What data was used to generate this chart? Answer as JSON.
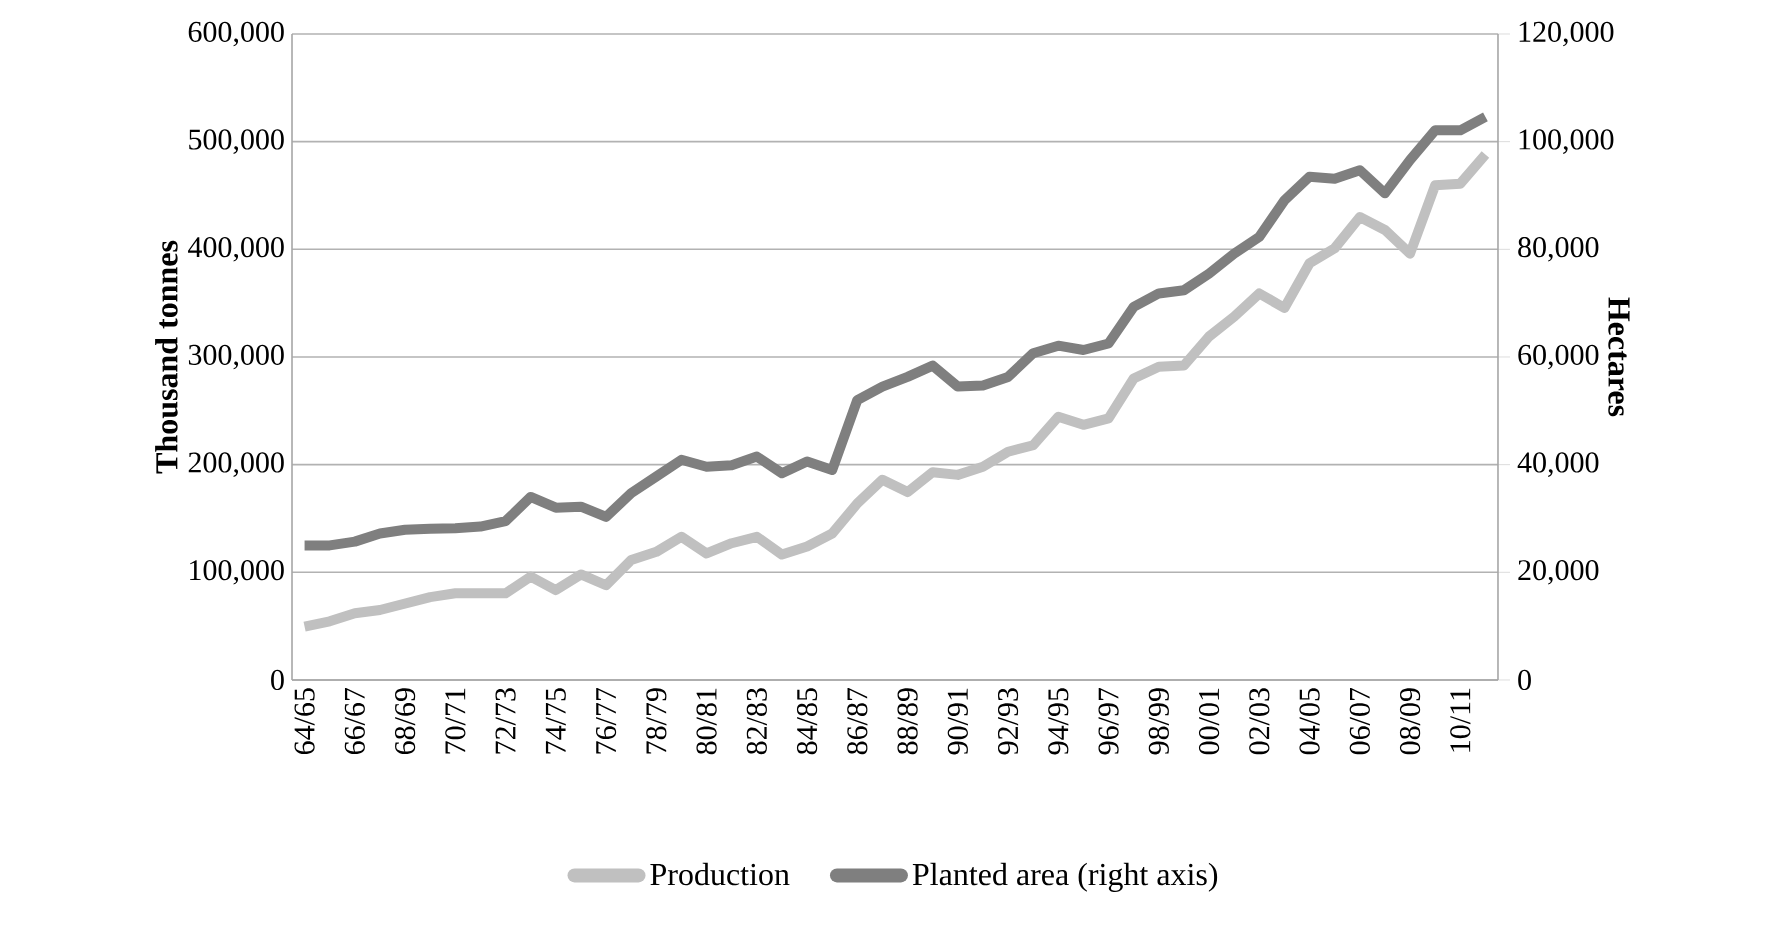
{
  "chart_data": {
    "type": "line",
    "ylabel": "Thousand tonnes",
    "y2label": "Hectares",
    "categories": [
      "64/65",
      null,
      "66/67",
      null,
      "68/69",
      null,
      "70/71",
      null,
      "72/73",
      null,
      "74/75",
      null,
      "76/77",
      null,
      "78/79",
      null,
      "80/81",
      null,
      "82/83",
      null,
      "84/85",
      null,
      "86/87",
      null,
      "88/89",
      null,
      "90/91",
      null,
      "92/93",
      null,
      "94/95",
      null,
      "96/97",
      null,
      "98/99",
      null,
      "00/01",
      null,
      "02/03",
      null,
      "04/05",
      null,
      "06/07",
      null,
      "08/09",
      null,
      "10/11",
      null
    ],
    "series": [
      {
        "name": "Production",
        "color": "#c0c0c0",
        "values": [
          49500,
          54500,
          62000,
          65000,
          71000,
          77000,
          80500,
          80500,
          80500,
          96000,
          83500,
          98000,
          88000,
          111500,
          119000,
          133000,
          117500,
          127000,
          133000,
          116500,
          124000,
          136000,
          164000,
          186000,
          174500,
          193000,
          190500,
          198000,
          212000,
          218000,
          244500,
          237000,
          243000,
          280000,
          291000,
          292000,
          319000,
          337500,
          359000,
          345500,
          387000,
          401000,
          430000,
          418000,
          396000,
          459500,
          461000,
          488000
        ]
      },
      {
        "name": "Planted area (right axis)",
        "color": "#7f7f7f",
        "axis": "y2",
        "values": [
          25000,
          25000,
          25700,
          27200,
          27900,
          28100,
          28200,
          28500,
          29500,
          34000,
          32000,
          32200,
          30300,
          34700,
          37800,
          40900,
          39600,
          39900,
          41500,
          38400,
          40600,
          39000,
          52000,
          54500,
          56300,
          58400,
          54500,
          54700,
          56300,
          60700,
          62100,
          61300,
          62500,
          69300,
          71800,
          72400,
          75500,
          79200,
          82300,
          89100,
          93500,
          93100,
          94700,
          90400,
          96600,
          102100,
          102100,
          104600
        ]
      }
    ],
    "ylim": [
      0,
      600000
    ],
    "yticks": [
      {
        "value": 0,
        "label": "0"
      },
      {
        "value": 100000,
        "label": "100,000"
      },
      {
        "value": 200000,
        "label": "200,000"
      },
      {
        "value": 300000,
        "label": "300,000"
      },
      {
        "value": 400000,
        "label": "400,000"
      },
      {
        "value": 500000,
        "label": "500,000"
      },
      {
        "value": 600000,
        "label": "600,000"
      }
    ],
    "y2lim": [
      0,
      120000
    ],
    "y2ticks": [
      {
        "value": 0,
        "label": "0"
      },
      {
        "value": 20000,
        "label": "20,000"
      },
      {
        "value": 40000,
        "label": "40,000"
      },
      {
        "value": 60000,
        "label": "60,000"
      },
      {
        "value": 80000,
        "label": "80,000"
      },
      {
        "value": 100000,
        "label": "100,000"
      },
      {
        "value": 120000,
        "label": "120,000"
      }
    ],
    "grid": "y",
    "legend": "bottom",
    "marker": "none",
    "line_style": "solid"
  }
}
